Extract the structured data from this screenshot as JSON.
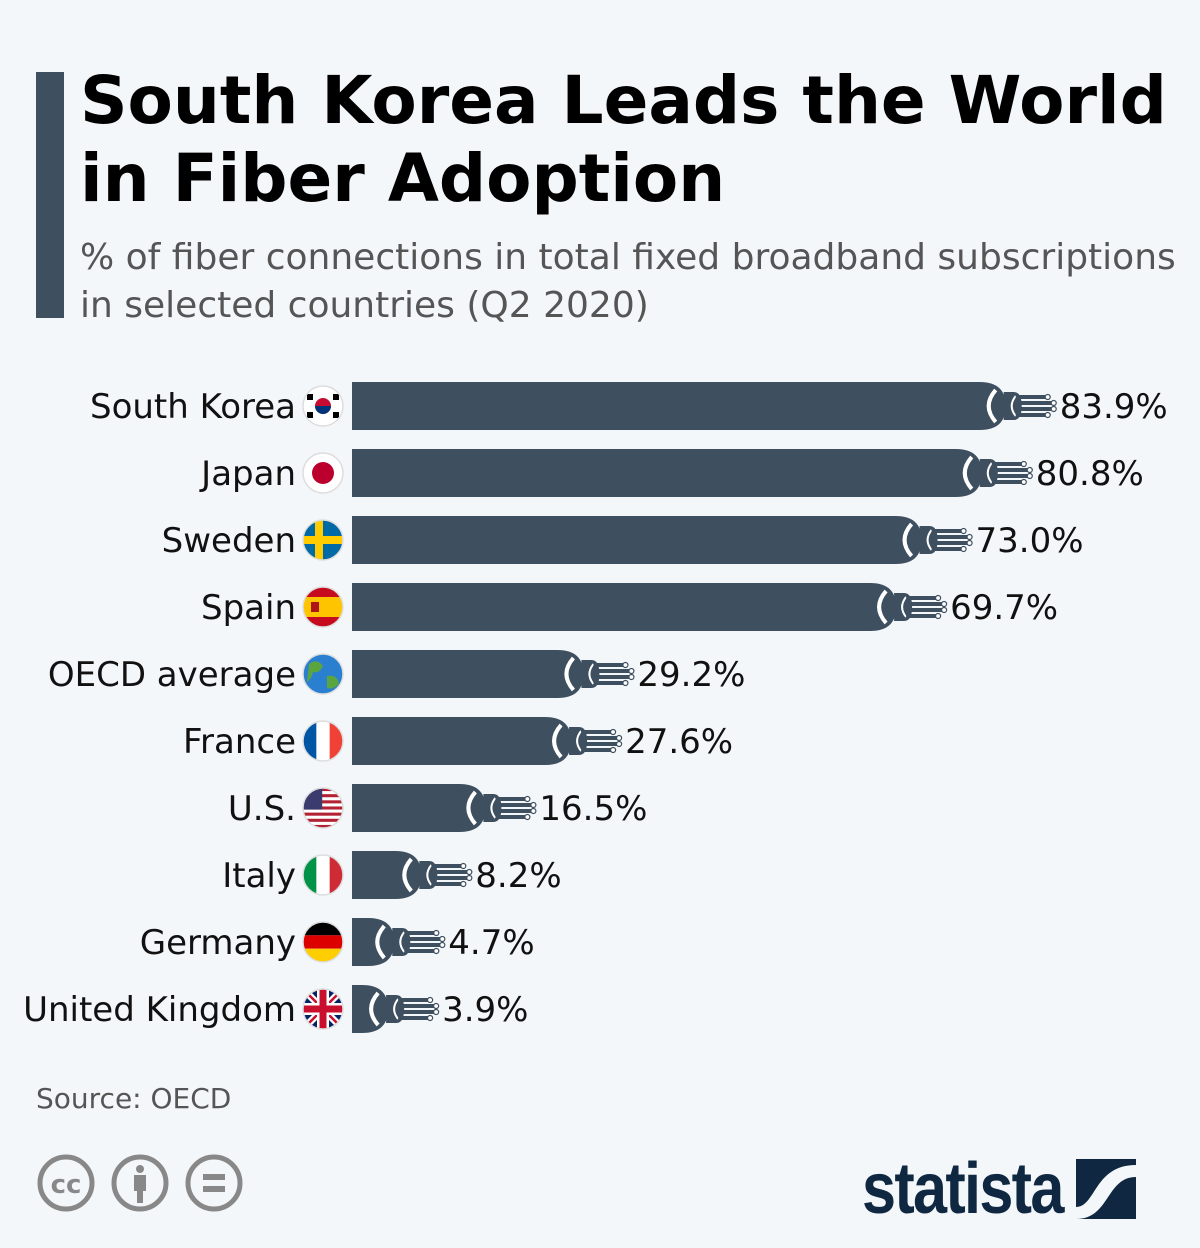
{
  "title": "South Korea Leads the World in Fiber Adoption",
  "subtitle": "% of fiber connections in total fixed broadband subscriptions in selected countries (Q2 2020)",
  "source": "Source: OECD",
  "brand": "statista",
  "colors": {
    "bar": "#3e4f60",
    "text": "#000000",
    "background": "#f3f7fa",
    "logo": "#0f2740"
  },
  "chart_data": {
    "type": "bar",
    "orientation": "horizontal",
    "categories": [
      "South Korea",
      "Japan",
      "Sweden",
      "Spain",
      "OECD average",
      "France",
      "U.S.",
      "Italy",
      "Germany",
      "United Kingdom"
    ],
    "values": [
      83.9,
      80.8,
      73.0,
      69.7,
      29.2,
      27.6,
      16.5,
      8.2,
      4.7,
      3.9
    ],
    "value_labels": [
      "83.9%",
      "80.8%",
      "73.0%",
      "69.7%",
      "29.2%",
      "27.6%",
      "16.5%",
      "8.2%",
      "4.7%",
      "3.9%"
    ],
    "flags": [
      "kr",
      "jp",
      "se",
      "es",
      "globe",
      "fr",
      "us",
      "it",
      "de",
      "gb"
    ],
    "bar_style": "fiber-optic cable",
    "grid": false,
    "xlim": [
      0,
      100
    ]
  },
  "license_icons": [
    "cc-icon",
    "attribution-icon",
    "no-derivatives-icon"
  ]
}
